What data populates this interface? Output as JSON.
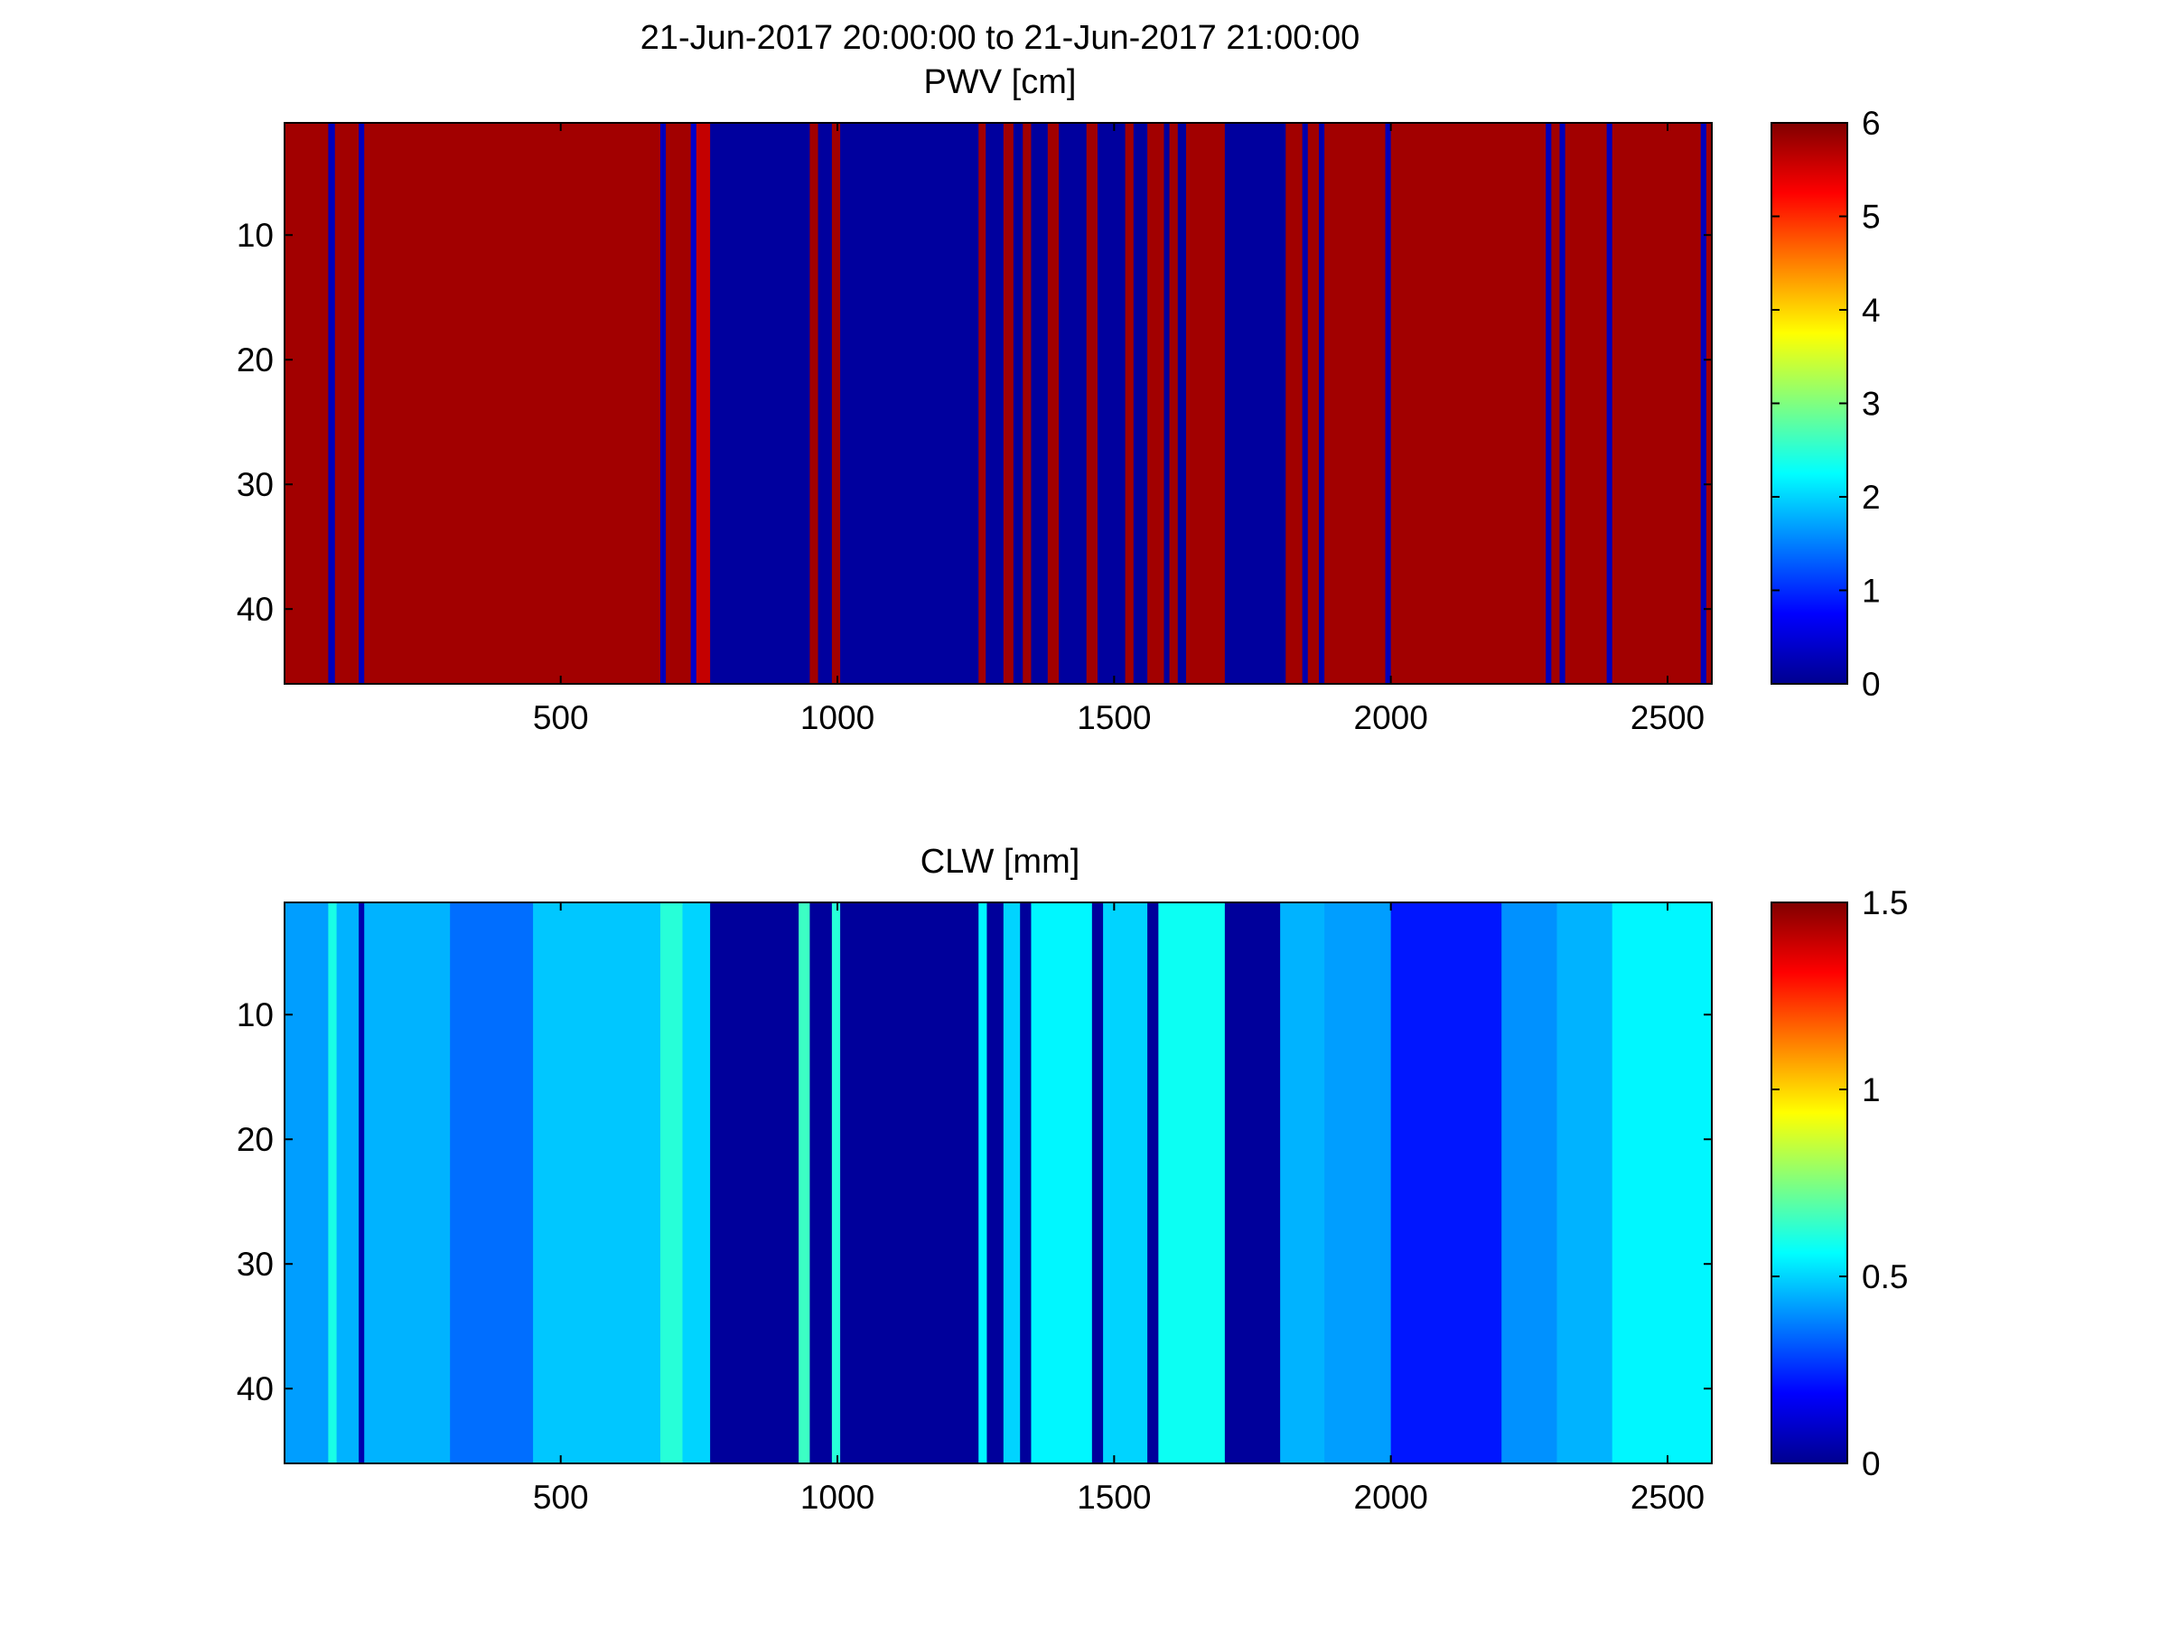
{
  "figure": {
    "title": "21-Jun-2017 20:00:00 to 21-Jun-2017 21:00:00"
  },
  "chart_data": [
    {
      "type": "heatmap",
      "title": "PWV [cm]",
      "colormap": "jet",
      "xlim": [
        1,
        2580
      ],
      "ylim": [
        1,
        46
      ],
      "y_reversed": true,
      "x_ticks": [
        500,
        1000,
        1500,
        2000,
        2500
      ],
      "y_ticks": [
        10,
        20,
        30,
        40
      ],
      "clim": [
        0,
        6
      ],
      "colorbar_ticks": [
        0,
        1,
        2,
        3,
        4,
        5,
        6
      ],
      "x_segments": [
        [
          1,
          80,
          5.8
        ],
        [
          80,
          92,
          0.3
        ],
        [
          92,
          135,
          5.8
        ],
        [
          135,
          145,
          0.3
        ],
        [
          145,
          680,
          5.8
        ],
        [
          680,
          690,
          0.3
        ],
        [
          690,
          735,
          5.8
        ],
        [
          735,
          745,
          0.4
        ],
        [
          745,
          770,
          5.6
        ],
        [
          770,
          950,
          0.1
        ],
        [
          950,
          965,
          5.8
        ],
        [
          965,
          990,
          0.1
        ],
        [
          990,
          1005,
          5.8
        ],
        [
          1005,
          1255,
          0.1
        ],
        [
          1255,
          1268,
          5.8
        ],
        [
          1268,
          1300,
          0.1
        ],
        [
          1300,
          1318,
          5.8
        ],
        [
          1318,
          1335,
          0.1
        ],
        [
          1335,
          1350,
          5.8
        ],
        [
          1350,
          1380,
          0.1
        ],
        [
          1380,
          1400,
          5.8
        ],
        [
          1400,
          1450,
          0.1
        ],
        [
          1450,
          1470,
          5.8
        ],
        [
          1470,
          1520,
          0.1
        ],
        [
          1520,
          1535,
          5.8
        ],
        [
          1535,
          1560,
          0.1
        ],
        [
          1560,
          1590,
          5.8
        ],
        [
          1590,
          1600,
          0.1
        ],
        [
          1600,
          1615,
          5.8
        ],
        [
          1615,
          1630,
          0.1
        ],
        [
          1630,
          1700,
          5.8
        ],
        [
          1700,
          1810,
          0.1
        ],
        [
          1810,
          1840,
          5.8
        ],
        [
          1840,
          1850,
          0.2
        ],
        [
          1850,
          1870,
          5.8
        ],
        [
          1870,
          1880,
          0.2
        ],
        [
          1880,
          1990,
          5.8
        ],
        [
          1990,
          2000,
          0.3
        ],
        [
          2000,
          2280,
          5.8
        ],
        [
          2280,
          2290,
          0.3
        ],
        [
          2290,
          2305,
          5.8
        ],
        [
          2305,
          2315,
          0.3
        ],
        [
          2315,
          2390,
          5.8
        ],
        [
          2390,
          2400,
          0.3
        ],
        [
          2400,
          2560,
          5.8
        ],
        [
          2560,
          2570,
          0.3
        ],
        [
          2570,
          2580,
          5.8
        ]
      ]
    },
    {
      "type": "heatmap",
      "title": "CLW [mm]",
      "colormap": "jet",
      "xlim": [
        1,
        2580
      ],
      "ylim": [
        1,
        46
      ],
      "y_reversed": true,
      "x_ticks": [
        500,
        1000,
        1500,
        2000,
        2500
      ],
      "y_ticks": [
        10,
        20,
        30,
        40
      ],
      "clim": [
        0,
        1.5
      ],
      "colorbar_ticks": [
        0,
        0.5,
        1,
        1.5
      ],
      "x_segments": [
        [
          1,
          80,
          0.42
        ],
        [
          80,
          95,
          0.6
        ],
        [
          95,
          135,
          0.45
        ],
        [
          135,
          145,
          0.05
        ],
        [
          145,
          300,
          0.45
        ],
        [
          300,
          450,
          0.35
        ],
        [
          450,
          680,
          0.48
        ],
        [
          680,
          720,
          0.62
        ],
        [
          720,
          770,
          0.5
        ],
        [
          770,
          930,
          0.02
        ],
        [
          930,
          950,
          0.65
        ],
        [
          950,
          990,
          0.02
        ],
        [
          990,
          1005,
          0.62
        ],
        [
          1005,
          1255,
          0.02
        ],
        [
          1255,
          1270,
          0.55
        ],
        [
          1270,
          1300,
          0.02
        ],
        [
          1300,
          1330,
          0.5
        ],
        [
          1330,
          1350,
          0.02
        ],
        [
          1350,
          1460,
          0.55
        ],
        [
          1460,
          1480,
          0.02
        ],
        [
          1480,
          1560,
          0.5
        ],
        [
          1560,
          1580,
          0.02
        ],
        [
          1580,
          1700,
          0.58
        ],
        [
          1700,
          1800,
          0.02
        ],
        [
          1800,
          1880,
          0.45
        ],
        [
          1880,
          2000,
          0.42
        ],
        [
          2000,
          2200,
          0.22
        ],
        [
          2200,
          2300,
          0.4
        ],
        [
          2300,
          2400,
          0.45
        ],
        [
          2400,
          2580,
          0.55
        ]
      ]
    }
  ]
}
